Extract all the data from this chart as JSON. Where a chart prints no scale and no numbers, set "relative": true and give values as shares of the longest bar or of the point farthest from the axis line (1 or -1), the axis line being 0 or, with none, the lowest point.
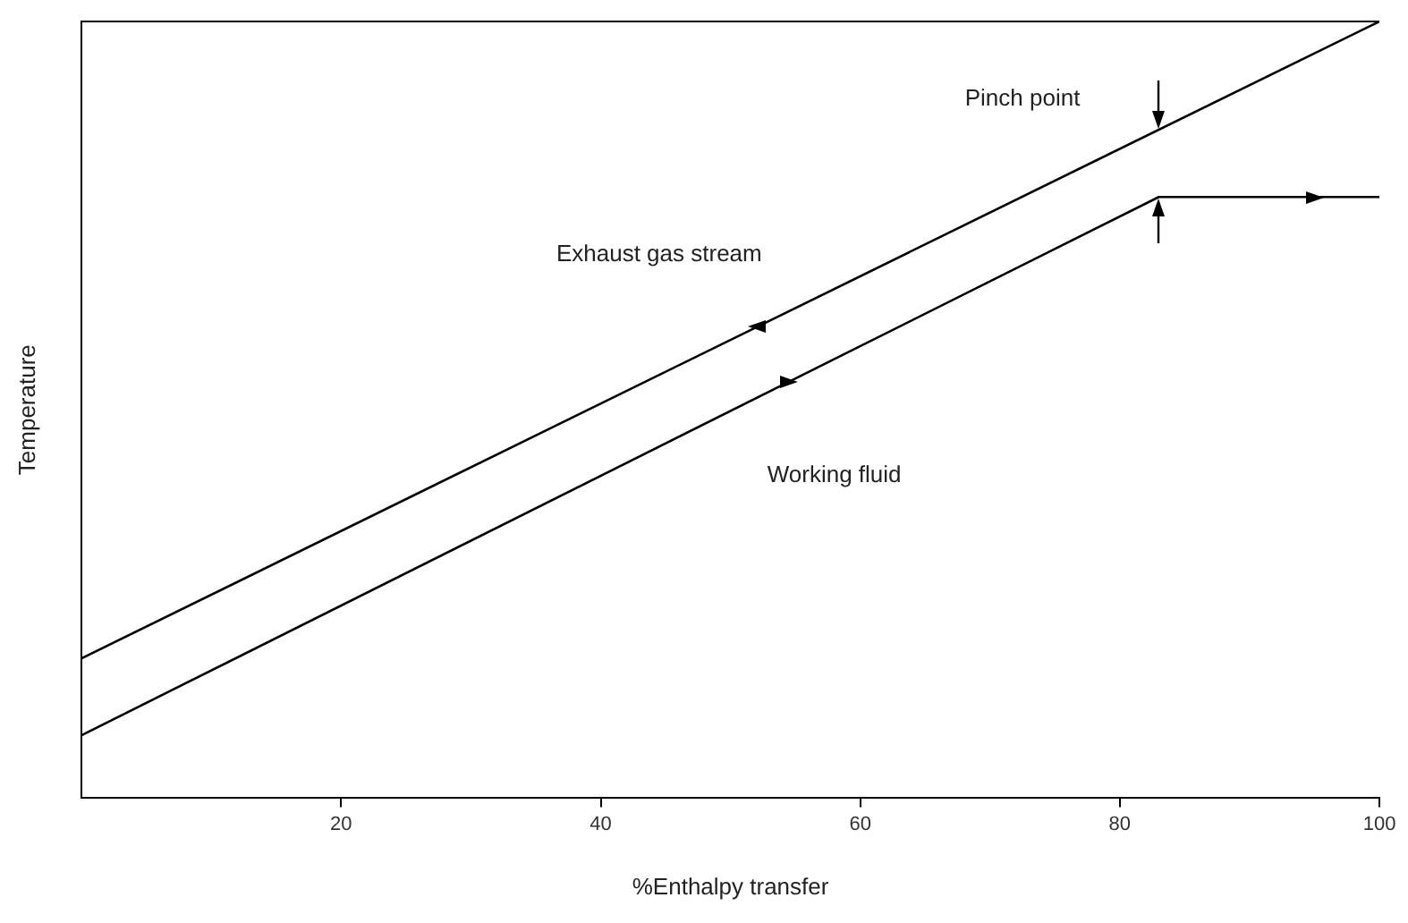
{
  "chart_data": {
    "type": "line",
    "xlabel": "%Enthalpy transfer",
    "ylabel": "Temperature",
    "relative": true,
    "xlim": [
      0,
      100
    ],
    "xticks": [
      20,
      40,
      60,
      80,
      100
    ],
    "grid": false,
    "legend": false,
    "marker": "none",
    "line_style": "solid",
    "series": [
      {
        "color": "#000000",
        "x": [
          0,
          100
        ],
        "values": [
          0.18,
          1
        ]
      },
      {
        "color": "#000000",
        "x": [
          0,
          83,
          100
        ],
        "values": [
          0.081,
          0.774,
          0.774
        ]
      }
    ],
    "annotations": [
      "Pinch point",
      "Exhaust gas stream",
      "Working fluid"
    ]
  }
}
